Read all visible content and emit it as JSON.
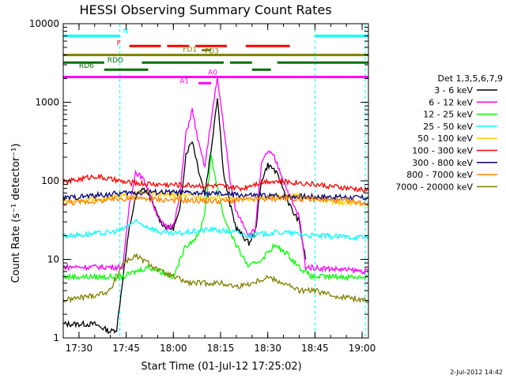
{
  "chart_data": {
    "type": "line",
    "title": "HESSI Observing Summary Count Rates",
    "xlabel": "Start Time (01-Jul-12 17:25:02)",
    "ylabel": "Count Rate (s⁻¹ detector⁻¹)",
    "y_scale": "log",
    "ylim": [
      1,
      10000
    ],
    "xlim": [
      "17:25",
      "19:02"
    ],
    "x_ticks": [
      "17:30",
      "17:45",
      "18:00",
      "18:15",
      "18:30",
      "18:45",
      "19:00"
    ],
    "y_ticks": [
      "1",
      "10",
      "100",
      "1000",
      "10000"
    ],
    "timestamp": "2-Jul-2012 14:42",
    "legend": {
      "title": "Det 1,3,5,6,7,9",
      "placement": "right"
    },
    "series": [
      {
        "name": "3 - 6 keV",
        "color": "#000000",
        "x": [
          "17:25",
          "17:35",
          "17:40",
          "17:42",
          "17:44",
          "17:46",
          "17:48",
          "17:50",
          "17:52",
          "17:54",
          "17:56",
          "17:58",
          "18:00",
          "18:02",
          "18:04",
          "18:06",
          "18:08",
          "18:10",
          "18:12",
          "18:14",
          "18:16",
          "18:18",
          "18:20",
          "18:22",
          "18:24",
          "18:26",
          "18:28",
          "18:30",
          "18:32",
          "18:34",
          "18:36",
          "18:38",
          "18:40",
          "18:42"
        ],
        "y": [
          1.5,
          1.5,
          1.2,
          1.3,
          6,
          25,
          60,
          80,
          70,
          45,
          30,
          25,
          25,
          40,
          220,
          330,
          140,
          70,
          250,
          1200,
          120,
          50,
          25,
          20,
          16,
          22,
          100,
          160,
          140,
          100,
          60,
          40,
          30,
          10
        ]
      },
      {
        "name": "6 - 12 keV",
        "color": "#ff00ff",
        "x": [
          "17:25",
          "17:44",
          "17:46",
          "17:48",
          "17:50",
          "17:52",
          "17:54",
          "17:56",
          "17:58",
          "18:00",
          "18:02",
          "18:04",
          "18:06",
          "18:08",
          "18:10",
          "18:12",
          "18:14",
          "18:16",
          "18:18",
          "18:20",
          "18:22",
          "18:24",
          "18:26",
          "18:28",
          "18:30",
          "18:32",
          "18:34",
          "18:36",
          "18:38",
          "18:40",
          "18:42",
          "19:02"
        ],
        "y": [
          8,
          8,
          50,
          130,
          110,
          80,
          45,
          30,
          25,
          28,
          60,
          400,
          800,
          300,
          150,
          600,
          2000,
          500,
          100,
          40,
          30,
          20,
          24,
          160,
          240,
          200,
          130,
          80,
          50,
          35,
          8,
          7
        ]
      },
      {
        "name": "12 - 25 keV",
        "color": "#00ff00",
        "x": [
          "17:25",
          "17:44",
          "17:48",
          "17:52",
          "17:56",
          "18:00",
          "18:04",
          "18:08",
          "18:10",
          "18:12",
          "18:16",
          "18:20",
          "18:24",
          "18:28",
          "18:32",
          "18:36",
          "18:40",
          "18:44",
          "19:02"
        ],
        "y": [
          6,
          6,
          7,
          8,
          7,
          6,
          15,
          20,
          40,
          200,
          35,
          15,
          8,
          10,
          15,
          12,
          8,
          6,
          6
        ]
      },
      {
        "name": "25 - 50 keV",
        "color": "#00ffff",
        "x": [
          "17:25",
          "17:34",
          "17:40",
          "17:44",
          "17:46",
          "17:48",
          "17:52",
          "17:56",
          "18:00",
          "18:04",
          "18:08",
          "18:12",
          "18:16",
          "18:20",
          "18:24",
          "18:28",
          "18:32",
          "18:36",
          "18:40",
          "18:44",
          "19:02"
        ],
        "y": [
          20,
          21,
          22,
          24,
          28,
          30,
          26,
          22,
          21,
          22,
          23,
          24,
          23,
          22,
          20,
          21,
          22,
          22,
          21,
          20,
          19
        ]
      },
      {
        "name": "50 - 100 keV",
        "color": "#ffd000",
        "x": [
          "17:25",
          "17:40",
          "17:50",
          "18:00",
          "18:10",
          "18:20",
          "18:30",
          "18:40",
          "18:50",
          "19:02"
        ],
        "y": [
          55,
          60,
          70,
          65,
          62,
          58,
          62,
          64,
          55,
          50
        ]
      },
      {
        "name": "100 - 300 keV",
        "color": "#ff0000",
        "x": [
          "17:25",
          "17:35",
          "17:45",
          "17:55",
          "18:05",
          "18:15",
          "18:22",
          "18:25",
          "18:30",
          "18:40",
          "18:50",
          "19:02"
        ],
        "y": [
          95,
          115,
          95,
          90,
          88,
          85,
          80,
          90,
          100,
          95,
          85,
          75
        ]
      },
      {
        "name": "300 - 800 keV",
        "color": "#000080",
        "x": [
          "17:25",
          "17:35",
          "17:45",
          "17:55",
          "18:05",
          "18:15",
          "18:25",
          "18:35",
          "18:45",
          "18:55",
          "19:02"
        ],
        "y": [
          60,
          65,
          70,
          72,
          70,
          68,
          65,
          64,
          63,
          62,
          60
        ]
      },
      {
        "name": "800 - 7000 keV",
        "color": "#ff7f00",
        "x": [
          "17:25",
          "17:35",
          "17:45",
          "17:55",
          "18:05",
          "18:15",
          "18:25",
          "18:35",
          "18:45",
          "18:55",
          "19:02"
        ],
        "y": [
          52,
          55,
          60,
          58,
          56,
          55,
          58,
          60,
          58,
          55,
          52
        ]
      },
      {
        "name": "7000 - 20000 keV",
        "color": "#808000",
        "x": [
          "17:25",
          "17:35",
          "17:40",
          "17:44",
          "17:48",
          "17:52",
          "17:56",
          "18:00",
          "18:05",
          "18:10",
          "18:15",
          "18:20",
          "18:25",
          "18:30",
          "18:35",
          "18:40",
          "18:45",
          "18:50",
          "19:02"
        ],
        "y": [
          3,
          3.5,
          4,
          9,
          11,
          9,
          7,
          6,
          5,
          5,
          5,
          4.5,
          5,
          6,
          5,
          4,
          4,
          3.5,
          3
        ]
      }
    ],
    "flags": [
      {
        "label": "N",
        "color": "#00ffff",
        "y": 7000,
        "segments": [
          [
            "17:25",
            "17:43"
          ],
          [
            "18:45",
            "19:02"
          ]
        ]
      },
      {
        "label": "F",
        "color": "#ff0000",
        "y": 5200,
        "segments": [
          [
            "17:46",
            "17:56"
          ],
          [
            "17:58",
            "18:05"
          ],
          [
            "18:07",
            "18:17"
          ],
          [
            "18:23",
            "18:37"
          ]
        ]
      },
      {
        "label": "FD1",
        "color": "#808000",
        "y": 4000,
        "segments": [
          [
            "17:25",
            "19:02"
          ]
        ]
      },
      {
        "label": "FD3",
        "color": "#808000",
        "y": 4600,
        "segments": [
          [
            "18:09",
            "18:12"
          ]
        ]
      },
      {
        "label": "RDO",
        "color": "#007000",
        "y": 3200,
        "segments": [
          [
            "17:25",
            "17:38"
          ],
          [
            "17:50",
            "18:16"
          ],
          [
            "18:18",
            "18:25"
          ],
          [
            "18:33",
            "19:02"
          ]
        ]
      },
      {
        "label": "RD6",
        "color": "#007000",
        "y": 2600,
        "segments": [
          [
            "17:38",
            "17:52"
          ],
          [
            "18:25",
            "18:31"
          ]
        ]
      },
      {
        "label": "A0",
        "color": "#ff00ff",
        "y": 2100,
        "segments": [
          [
            "17:25",
            "19:02"
          ]
        ]
      },
      {
        "label": "A1",
        "color": "#ff00ff",
        "y": 1750,
        "segments": [
          [
            "18:08",
            "18:12"
          ]
        ]
      }
    ],
    "saa_markers": [
      "17:43",
      "18:45",
      "19:01"
    ]
  }
}
